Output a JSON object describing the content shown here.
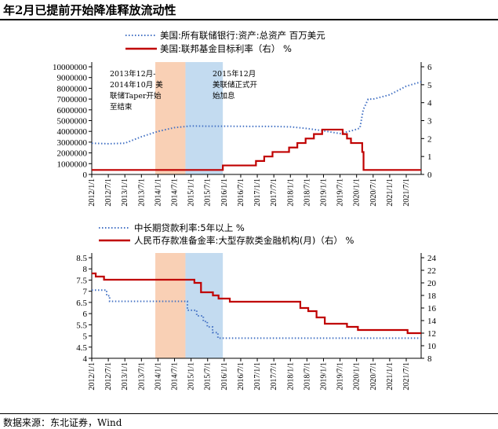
{
  "page": {
    "title": "年2月已提前开始降准释放流动性",
    "source": "数据来源：东北证券，Wind"
  },
  "colors": {
    "dotted_blue": "#4472c4",
    "red": "#c00000",
    "shade_orange": "#f8cbad",
    "shade_blue": "#bdd7ee"
  },
  "chart_data": [
    {
      "type": "line",
      "legend": [
        "美国:所有联储银行:资产:总资产 百万美元",
        "美国:联邦基金目标利率（右） %"
      ],
      "x_ticks": [
        "2012/1/1",
        "2012/7/1",
        "2013/1/1",
        "2013/7/1",
        "2014/1/1",
        "2014/7/1",
        "2015/1/1",
        "2015/7/1",
        "2016/1/1",
        "2016/7/1",
        "2017/1/1",
        "2017/7/1",
        "2018/1/1",
        "2018/7/1",
        "2019/1/1",
        "2019/7/1",
        "2020/1/1",
        "2020/7/1",
        "2021/1/1",
        "2021/7/1"
      ],
      "y_left_ticks": [
        "0",
        "1000000",
        "2000000",
        "3000000",
        "4000000",
        "5000000",
        "6000000",
        "7000000",
        "8000000",
        "9000000",
        "10000000"
      ],
      "y_right_ticks": [
        "0",
        "1",
        "2",
        "3",
        "4",
        "5",
        "6"
      ],
      "ylim_left": [
        0,
        10000000
      ],
      "ylim_right": [
        0,
        6
      ],
      "xlim": [
        2012.0,
        2021.95
      ],
      "shaded_periods": [
        {
          "start": 2013.92,
          "end": 2014.83,
          "color": "orange"
        },
        {
          "start": 2014.83,
          "end": 2015.96,
          "color": "blue"
        }
      ],
      "annotations": [
        {
          "lines": [
            "2013年12月-",
            "2014年10月 美",
            "联储Taper开始",
            "至结束"
          ]
        },
        {
          "lines": [
            "2015年12月",
            "美联储正式开",
            "始加息"
          ]
        }
      ],
      "series": [
        {
          "name": "美国:所有联储银行:资产:总资产 百万美元",
          "axis": "left",
          "style": "dotted",
          "x": [
            2012.0,
            2012.5,
            2013.0,
            2013.5,
            2014.0,
            2014.5,
            2015.0,
            2015.5,
            2016.0,
            2016.5,
            2017.0,
            2017.5,
            2018.0,
            2018.5,
            2019.0,
            2019.5,
            2019.9,
            2020.1,
            2020.2,
            2020.35,
            2020.5,
            2021.0,
            2021.5,
            2021.95
          ],
          "y": [
            2900000,
            2850000,
            2900000,
            3500000,
            4000000,
            4350000,
            4500000,
            4480000,
            4480000,
            4470000,
            4460000,
            4460000,
            4420000,
            4270000,
            4050000,
            3800000,
            4100000,
            4300000,
            6000000,
            7000000,
            7000000,
            7400000,
            8200000,
            8600000
          ]
        },
        {
          "name": "美国:联邦基金目标利率（右） %",
          "axis": "right",
          "style": "step",
          "x": [
            2012.0,
            2015.96,
            2016.96,
            2017.21,
            2017.46,
            2017.96,
            2018.21,
            2018.46,
            2018.71,
            2018.96,
            2019.58,
            2019.71,
            2019.83,
            2020.17,
            2020.21,
            2021.95
          ],
          "y": [
            0.25,
            0.5,
            0.75,
            1.0,
            1.25,
            1.5,
            1.75,
            2.0,
            2.25,
            2.5,
            2.25,
            2.0,
            1.75,
            1.25,
            0.25,
            0.25
          ]
        }
      ]
    },
    {
      "type": "line",
      "legend": [
        "中长期贷款利率:5年以上 %",
        "人民币存款准备金率:大型存款类金融机构(月)（右） %"
      ],
      "x_ticks": [
        "2012/1/1",
        "2012/7/1",
        "2013/1/1",
        "2013/7/1",
        "2014/1/1",
        "2014/7/1",
        "2015/1/1",
        "2015/7/1",
        "2016/1/1",
        "2016/7/1",
        "2017/1/1",
        "2017/7/1",
        "2018/1/1",
        "2018/7/1",
        "2019/1/1",
        "2019/7/1",
        "2020/1/1",
        "2020/7/1",
        "2021/1/1",
        "2021/7/1"
      ],
      "y_left_ticks": [
        "4",
        "4.5",
        "5",
        "5.5",
        "6",
        "6.5",
        "7",
        "7.5",
        "8",
        "8.5"
      ],
      "y_right_ticks": [
        "8",
        "10",
        "12",
        "14",
        "16",
        "18",
        "20",
        "22",
        "24"
      ],
      "ylim_left": [
        4,
        8.5
      ],
      "ylim_right": [
        8,
        24
      ],
      "xlim": [
        2012.0,
        2021.95
      ],
      "shaded_periods": [
        {
          "start": 2013.92,
          "end": 2014.83,
          "color": "orange"
        },
        {
          "start": 2014.83,
          "end": 2015.96,
          "color": "blue"
        }
      ],
      "series": [
        {
          "name": "中长期贷款利率:5年以上 %",
          "axis": "left",
          "style": "dotted-step",
          "x": [
            2012.0,
            2012.45,
            2012.54,
            2014.89,
            2015.17,
            2015.37,
            2015.49,
            2015.65,
            2015.81,
            2021.95
          ],
          "y": [
            7.05,
            6.8,
            6.55,
            6.15,
            5.9,
            5.65,
            5.4,
            5.15,
            4.9,
            4.9
          ]
        },
        {
          "name": "人民币存款准备金率:大型存款类金融机构(月)（右） %",
          "axis": "right",
          "style": "step",
          "x": [
            2012.0,
            2012.12,
            2012.37,
            2015.1,
            2015.3,
            2015.66,
            2015.83,
            2016.17,
            2018.3,
            2018.54,
            2018.79,
            2019.04,
            2019.71,
            2020.04,
            2021.54,
            2021.95
          ],
          "y": [
            21.5,
            21.0,
            20.5,
            20.0,
            18.5,
            18.0,
            17.5,
            17.0,
            16.0,
            15.5,
            14.5,
            13.5,
            13.0,
            12.5,
            12.0,
            12.0
          ]
        }
      ]
    }
  ]
}
